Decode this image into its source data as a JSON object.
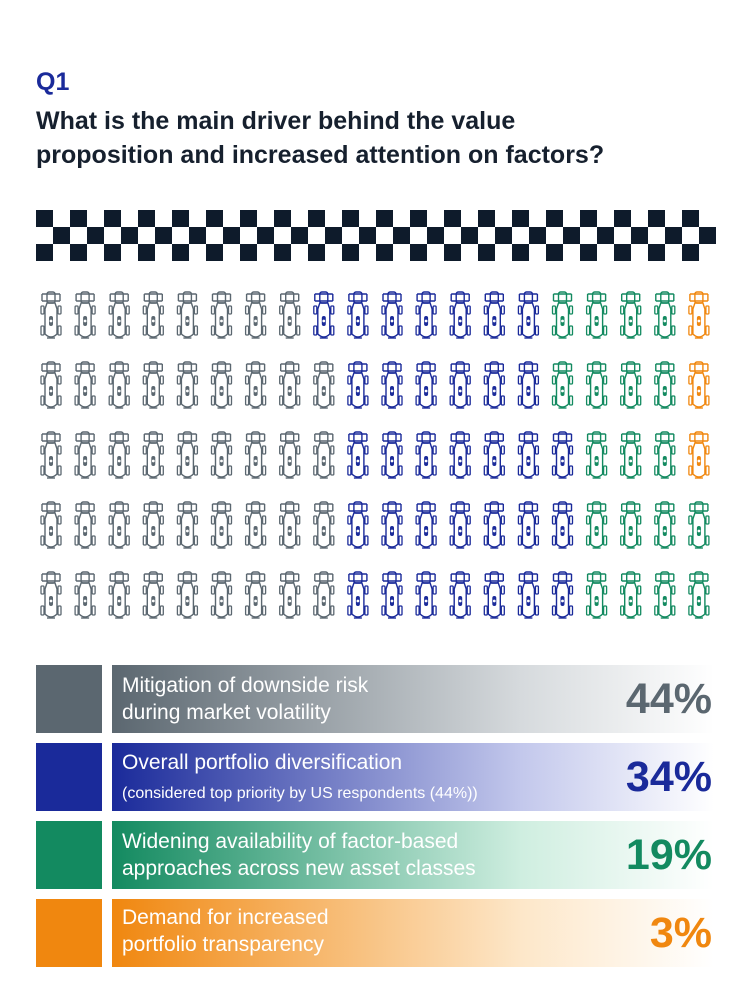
{
  "question": {
    "number": "Q1",
    "title_line1": "What is the main driver behind the value",
    "title_line2": "proposition and increased attention on factors?"
  },
  "chart_data": {
    "type": "pictogram",
    "total_icons": 100,
    "icon": "race-car-icon",
    "series": [
      {
        "value": 44,
        "percent_label": "44%",
        "label_line1": "Mitigation of downside risk",
        "label_line2": "during market volatility",
        "color": "#5b6770",
        "fade": "#d6dadd"
      },
      {
        "value": 34,
        "percent_label": "34%",
        "label_line1": "Overall portfolio diversification",
        "label_line2": "(considered top priority by US respondents (44%))",
        "color": "#1a2a9a",
        "fade": "#c3c8ec"
      },
      {
        "value": 19,
        "percent_label": "19%",
        "label_line1": "Widening availability of factor-based",
        "label_line2": "approaches across new asset classes",
        "color": "#138a60",
        "fade": "#cfeee0"
      },
      {
        "value": 3,
        "percent_label": "3%",
        "label_line1": "Demand for increased",
        "label_line2": "portfolio transparency",
        "color": "#f0870f",
        "fade": "#fde7c9"
      }
    ]
  }
}
